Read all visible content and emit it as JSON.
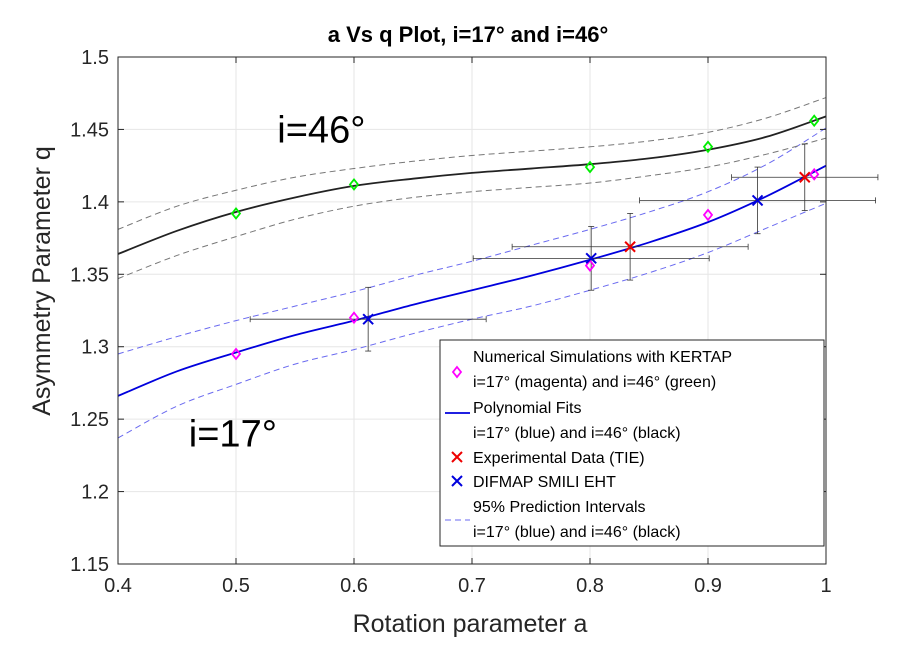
{
  "chart_data": {
    "type": "scatter",
    "title": "a Vs q Plot, i=17° and i=46°",
    "xlabel": "Rotation parameter a",
    "ylabel": "Asymmetry Parameter q",
    "xlim": [
      0.4,
      1.0
    ],
    "ylim": [
      1.15,
      1.5
    ],
    "grid": true,
    "x_ticks": [
      0.4,
      0.5,
      0.6,
      0.7,
      0.8,
      0.9,
      1.0
    ],
    "x_tick_labels": [
      "0.4",
      "0.5",
      "0.6",
      "0.7",
      "0.8",
      "0.9",
      "1"
    ],
    "y_ticks": [
      1.15,
      1.2,
      1.25,
      1.3,
      1.35,
      1.4,
      1.45,
      1.5
    ],
    "y_tick_labels": [
      "1.15",
      "1.2",
      "1.25",
      "1.3",
      "1.35",
      "1.4",
      "1.45",
      "1.5"
    ],
    "annotations": [
      {
        "text": "i=46°",
        "x": 0.535,
        "y": 1.45
      },
      {
        "text": "i=17°",
        "x": 0.46,
        "y": 1.24
      }
    ],
    "colors": {
      "magenta": "#ff00ff",
      "green": "#00ee00",
      "blue": "#0000dd",
      "black": "#222222",
      "red": "#ee0000",
      "dash_blue": "#6a6af0",
      "dash_black": "#777777",
      "errbar": "#333333",
      "grid": "#e6e6e6"
    },
    "series": [
      {
        "name": "Numerical Simulations i=17° (magenta)",
        "kind": "diamond",
        "color": "magenta",
        "x": [
          0.5,
          0.6,
          0.8,
          0.9,
          0.99
        ],
        "y": [
          1.295,
          1.32,
          1.356,
          1.391,
          1.419
        ]
      },
      {
        "name": "Numerical Simulations i=46° (green)",
        "kind": "diamond",
        "color": "green",
        "x": [
          0.5,
          0.6,
          0.8,
          0.9,
          0.99
        ],
        "y": [
          1.392,
          1.412,
          1.424,
          1.438,
          1.456
        ]
      },
      {
        "name": "Polynomial Fit i=17° (blue)",
        "kind": "line",
        "color": "blue",
        "x": [
          0.4,
          0.45,
          0.5,
          0.55,
          0.6,
          0.65,
          0.7,
          0.75,
          0.8,
          0.85,
          0.9,
          0.95,
          1.0
        ],
        "y": [
          1.266,
          1.283,
          1.296,
          1.308,
          1.318,
          1.329,
          1.339,
          1.349,
          1.36,
          1.372,
          1.386,
          1.404,
          1.425
        ]
      },
      {
        "name": "Polynomial Fit i=46° (black)",
        "kind": "line",
        "color": "black",
        "x": [
          0.4,
          0.45,
          0.5,
          0.55,
          0.6,
          0.65,
          0.7,
          0.75,
          0.8,
          0.85,
          0.9,
          0.95,
          1.0
        ],
        "y": [
          1.364,
          1.38,
          1.393,
          1.403,
          1.411,
          1.416,
          1.42,
          1.423,
          1.426,
          1.43,
          1.436,
          1.445,
          1.459
        ]
      },
      {
        "name": "95% PI upper i=17° (blue)",
        "kind": "dashed",
        "color": "dash_blue",
        "x": [
          0.4,
          0.45,
          0.5,
          0.55,
          0.6,
          0.65,
          0.7,
          0.75,
          0.8,
          0.85,
          0.9,
          0.95,
          1.0
        ],
        "y": [
          1.295,
          1.307,
          1.318,
          1.328,
          1.338,
          1.349,
          1.359,
          1.37,
          1.381,
          1.393,
          1.407,
          1.426,
          1.451
        ]
      },
      {
        "name": "95% PI lower i=17° (blue)",
        "kind": "dashed",
        "color": "dash_blue",
        "x": [
          0.4,
          0.45,
          0.5,
          0.55,
          0.6,
          0.65,
          0.7,
          0.75,
          0.8,
          0.85,
          0.9,
          0.95,
          1.0
        ],
        "y": [
          1.237,
          1.259,
          1.274,
          1.288,
          1.298,
          1.309,
          1.319,
          1.328,
          1.339,
          1.351,
          1.365,
          1.382,
          1.399
        ]
      },
      {
        "name": "95% PI upper i=46° (black)",
        "kind": "dashed",
        "color": "dash_black",
        "x": [
          0.4,
          0.45,
          0.5,
          0.55,
          0.6,
          0.65,
          0.7,
          0.75,
          0.8,
          0.85,
          0.9,
          0.95,
          1.0
        ],
        "y": [
          1.381,
          1.397,
          1.408,
          1.417,
          1.423,
          1.428,
          1.432,
          1.435,
          1.438,
          1.442,
          1.448,
          1.458,
          1.472
        ]
      },
      {
        "name": "95% PI lower i=46° (black)",
        "kind": "dashed",
        "color": "dash_black",
        "x": [
          0.4,
          0.45,
          0.5,
          0.55,
          0.6,
          0.65,
          0.7,
          0.75,
          0.8,
          0.85,
          0.9,
          0.95,
          1.0
        ],
        "y": [
          1.347,
          1.363,
          1.376,
          1.388,
          1.397,
          1.403,
          1.407,
          1.41,
          1.413,
          1.418,
          1.424,
          1.433,
          1.444
        ]
      }
    ],
    "experimental_tie": [
      {
        "x": 0.834,
        "y": 1.369,
        "xerr": 0.1,
        "yerr": 0.023
      },
      {
        "x": 0.982,
        "y": 1.417,
        "xerr": 0.062,
        "yerr": 0.023
      }
    ],
    "difmap_smili_eht": [
      {
        "x": 0.612,
        "y": 1.319,
        "xerr": 0.1,
        "yerr": 0.022
      },
      {
        "x": 0.801,
        "y": 1.361,
        "xerr": 0.1,
        "yerr": 0.022
      },
      {
        "x": 0.942,
        "y": 1.401,
        "xerr": 0.1,
        "yerr": 0.023
      }
    ],
    "legend": {
      "position": "bottom-right",
      "entries": [
        {
          "marker": "diamond",
          "color": "magenta",
          "lines": [
            "Numerical Simulations with KERTAP",
            "i=17° (magenta) and i=46° (green)"
          ]
        },
        {
          "marker": "line",
          "color": "blue",
          "lines": [
            "Polynomial Fits",
            "i=17° (blue) and i=46° (black)"
          ]
        },
        {
          "marker": "x",
          "color": "red",
          "lines": [
            "Experimental Data (TIE)"
          ]
        },
        {
          "marker": "x",
          "color": "blue",
          "lines": [
            "DIFMAP SMILI EHT"
          ]
        },
        {
          "marker": "dashed",
          "color": "dash_blue",
          "lines": [
            "95% Prediction Intervals",
            "i=17° (blue) and i=46° (black)"
          ]
        }
      ]
    }
  }
}
